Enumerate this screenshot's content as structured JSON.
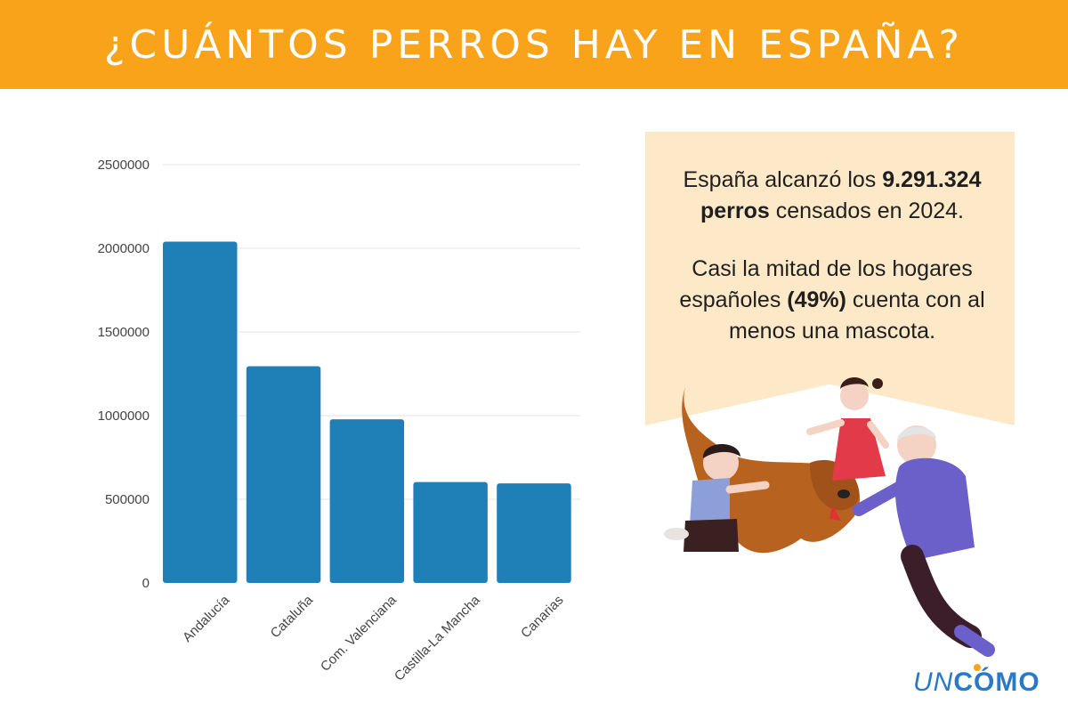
{
  "header": {
    "title": "¿CUÁNTOS PERROS HAY EN ESPAÑA?"
  },
  "info": {
    "p1_pre": "España alcanzó los ",
    "p1_bold": "9.291.324 perros",
    "p1_post": " censados en 2024.",
    "p2_pre": "Casi la mitad de los hogares españoles ",
    "p2_bold": "(49%)",
    "p2_post": " cuenta con al menos una mascota."
  },
  "logo": {
    "un": "UN",
    "como": "CÓMO"
  },
  "colors": {
    "banner": "#f9a31a",
    "bar": "#1f80b8",
    "box": "#fde9c8",
    "logo": "#2a78c8"
  },
  "illustration": {
    "icon": "family-with-dog-illustration"
  },
  "chart_data": {
    "type": "bar",
    "title": "",
    "xlabel": "",
    "ylabel": "",
    "categories": [
      "Andalucía",
      "Cataluña",
      "Com. Valenciana",
      "Castilla-La Mancha",
      "Canarias"
    ],
    "values": [
      2040000,
      1295000,
      978000,
      603000,
      595000
    ],
    "yticks": [
      0,
      500000,
      1000000,
      1500000,
      2000000,
      2500000
    ],
    "ylim": [
      0,
      2500000
    ],
    "grid": true
  }
}
